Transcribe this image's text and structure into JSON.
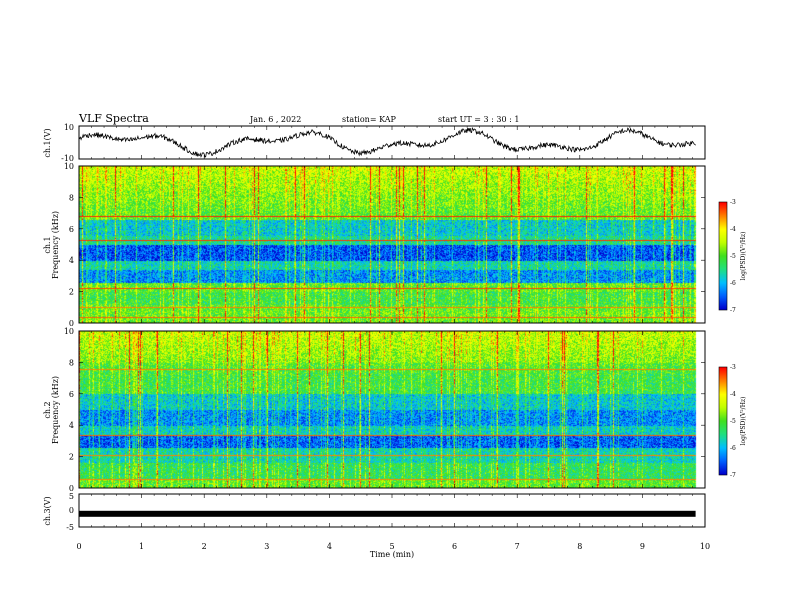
{
  "header": {
    "title": "VLF Spectra",
    "date": "Jan. 6 , 2022",
    "station": "station= KAP",
    "start": "start  UT  =   3  : 30 : 1"
  },
  "chart_data": [
    {
      "type": "line",
      "panel": "ch1-waveform",
      "ylabel": "ch.1(V)",
      "ylim": [
        -10,
        10
      ],
      "yticks": [
        "10",
        "-10"
      ],
      "x_range_min": [
        0,
        9.85
      ],
      "description_shape": "noisy waveform oscillating about 0 with amplitude up to ~10 V"
    },
    {
      "type": "heatmap",
      "panel": "ch1-spectrogram",
      "ylabel": "ch.1",
      "ylabel2": "Frequency  (kHz)",
      "ylim": [
        0,
        10
      ],
      "yticks": [
        "0",
        "2",
        "4",
        "6",
        "8",
        "10"
      ],
      "x_range_min": [
        0,
        9.85
      ],
      "colorbar": {
        "label": "log(PSD)(V²/Hz)",
        "range": [
          -7,
          -3
        ],
        "ticks": [
          "-3",
          "-4",
          "-5",
          "-6",
          "-7"
        ]
      }
    },
    {
      "type": "heatmap",
      "panel": "ch2-spectrogram",
      "ylabel": "ch.2",
      "ylabel2": "Frequency  (kHz)",
      "ylim": [
        0,
        10
      ],
      "yticks": [
        "0",
        "2",
        "4",
        "6",
        "8",
        "10"
      ],
      "x_range_min": [
        0,
        9.85
      ],
      "colorbar": {
        "label": "log(PSD)(V²/Hz)",
        "range": [
          -7,
          -3
        ],
        "ticks": [
          "-3",
          "-4",
          "-5",
          "-6",
          "-7"
        ]
      }
    },
    {
      "type": "line",
      "panel": "ch3-waveform",
      "ylabel": "ch.3(V)",
      "ylim": [
        -5,
        5
      ],
      "yticks": [
        "5",
        "0",
        "-5"
      ],
      "x_range_min": [
        0,
        9.85
      ],
      "level": -1
    }
  ],
  "xaxis": {
    "label": "Time  (min)",
    "range": [
      0,
      10
    ],
    "ticks": [
      "0",
      "1",
      "2",
      "3",
      "4",
      "5",
      "6",
      "7",
      "8",
      "9",
      "10"
    ]
  },
  "colors": {
    "trace": "#000000",
    "colormap": [
      "#0000cc",
      "#0060ff",
      "#00c0ff",
      "#20e080",
      "#40e020",
      "#c0ff00",
      "#ffff00",
      "#ff8000",
      "#ff0000"
    ]
  }
}
